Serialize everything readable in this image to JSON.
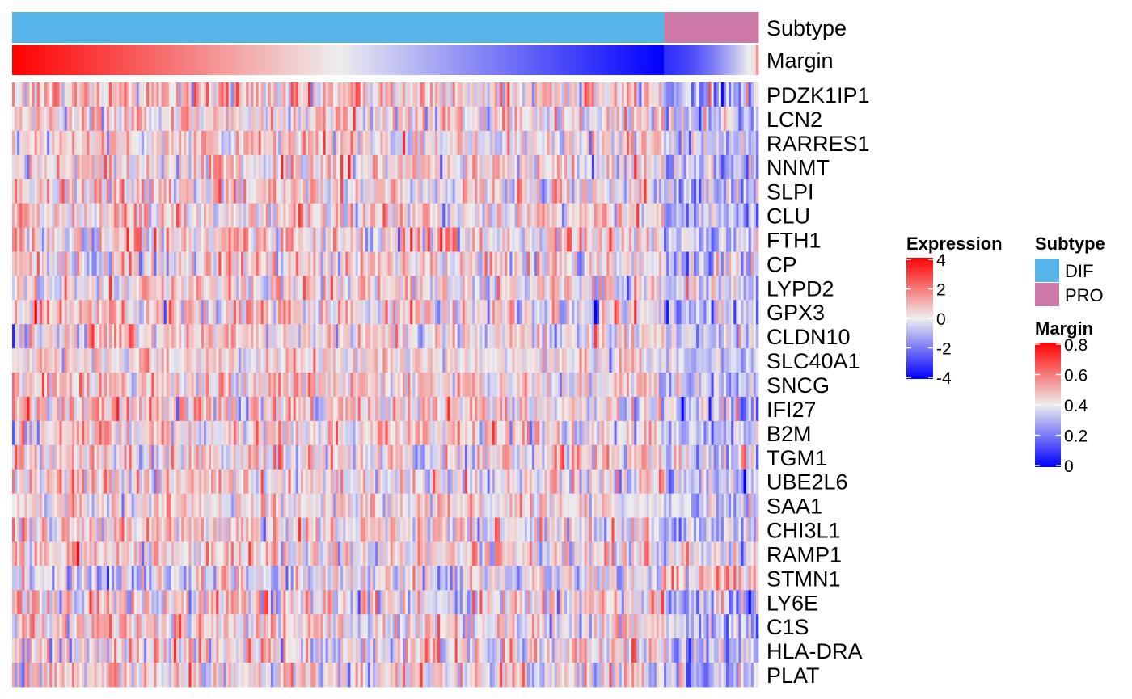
{
  "chart_data": {
    "type": "heatmap",
    "title": "",
    "n_samples": 300,
    "annotation_tracks": [
      {
        "name": "Subtype",
        "type": "categorical",
        "segments": [
          {
            "label": "DIF",
            "fraction": 0.874,
            "color": "#56B4E9"
          },
          {
            "label": "PRO",
            "fraction": 0.126,
            "color": "#CC79A7"
          }
        ]
      },
      {
        "name": "Margin",
        "type": "continuous",
        "profile": "decreasing within each subtype group (DIF: 0.8 → 0; PRO: 0.08 → 0.45)"
      }
    ],
    "rows": [
      {
        "gene": "PDZK1IP1",
        "dif_mean": 0.9,
        "pro_mean": -0.9,
        "sd": 1.1
      },
      {
        "gene": "LCN2",
        "dif_mean": 0.6,
        "pro_mean": -0.7,
        "sd": 1.0
      },
      {
        "gene": "RARRES1",
        "dif_mean": 0.6,
        "pro_mean": -0.8,
        "sd": 1.0
      },
      {
        "gene": "NNMT",
        "dif_mean": 0.6,
        "pro_mean": -0.8,
        "sd": 1.0
      },
      {
        "gene": "SLPI",
        "dif_mean": 0.5,
        "pro_mean": -0.7,
        "sd": 1.0
      },
      {
        "gene": "CLU",
        "dif_mean": 0.6,
        "pro_mean": -0.8,
        "sd": 1.0
      },
      {
        "gene": "FTH1",
        "dif_mean": 0.5,
        "pro_mean": -0.9,
        "sd": 1.1
      },
      {
        "gene": "CP",
        "dif_mean": 0.5,
        "pro_mean": -0.7,
        "sd": 1.0
      },
      {
        "gene": "LYPD2",
        "dif_mean": 0.5,
        "pro_mean": -0.7,
        "sd": 1.0
      },
      {
        "gene": "GPX3",
        "dif_mean": 0.6,
        "pro_mean": -0.8,
        "sd": 1.1
      },
      {
        "gene": "CLDN10",
        "dif_mean": 0.4,
        "pro_mean": -0.6,
        "sd": 0.9
      },
      {
        "gene": "SLC40A1",
        "dif_mean": 0.4,
        "pro_mean": -0.6,
        "sd": 0.8
      },
      {
        "gene": "SNCG",
        "dif_mean": 0.6,
        "pro_mean": -0.7,
        "sd": 1.0
      },
      {
        "gene": "IFI27",
        "dif_mean": 0.6,
        "pro_mean": -0.8,
        "sd": 1.1
      },
      {
        "gene": "B2M",
        "dif_mean": 0.5,
        "pro_mean": -0.7,
        "sd": 1.0
      },
      {
        "gene": "TGM1",
        "dif_mean": 0.5,
        "pro_mean": -0.6,
        "sd": 1.0
      },
      {
        "gene": "UBE2L6",
        "dif_mean": 0.5,
        "pro_mean": -0.7,
        "sd": 1.0
      },
      {
        "gene": "SAA1",
        "dif_mean": 0.4,
        "pro_mean": -0.5,
        "sd": 0.8
      },
      {
        "gene": "CHI3L1",
        "dif_mean": 0.5,
        "pro_mean": -0.6,
        "sd": 1.0
      },
      {
        "gene": "RAMP1",
        "dif_mean": 0.5,
        "pro_mean": -0.6,
        "sd": 1.0
      },
      {
        "gene": "STMN1",
        "dif_mean": -0.4,
        "pro_mean": 0.8,
        "sd": 1.0
      },
      {
        "gene": "LY6E",
        "dif_mean": 0.5,
        "pro_mean": -0.7,
        "sd": 1.1
      },
      {
        "gene": "C1S",
        "dif_mean": 0.5,
        "pro_mean": -0.6,
        "sd": 1.0
      },
      {
        "gene": "HLA-DRA",
        "dif_mean": 0.4,
        "pro_mean": -0.7,
        "sd": 1.1
      },
      {
        "gene": "PLAT",
        "dif_mean": 0.5,
        "pro_mean": -0.6,
        "sd": 1.0
      }
    ],
    "legends": {
      "expression": {
        "title": "Expression",
        "ticks": [
          "4",
          "2",
          "0",
          "-2",
          "-4"
        ],
        "range": [
          -4,
          4
        ],
        "colors": {
          "low": "#0000FF",
          "mid": "#EEEEEE",
          "high": "#FF0000"
        }
      },
      "subtype": {
        "title": "Subtype",
        "items": [
          {
            "label": "DIF",
            "color": "#56B4E9"
          },
          {
            "label": "PRO",
            "color": "#CC79A7"
          }
        ]
      },
      "margin": {
        "title": "Margin",
        "ticks": [
          "0.8",
          "0.6",
          "0.4",
          "0.2",
          "0"
        ],
        "range": [
          0,
          0.8
        ],
        "colors": {
          "low": "#0000FF",
          "mid": "#EEEEEE",
          "high": "#FF0000"
        }
      }
    }
  }
}
